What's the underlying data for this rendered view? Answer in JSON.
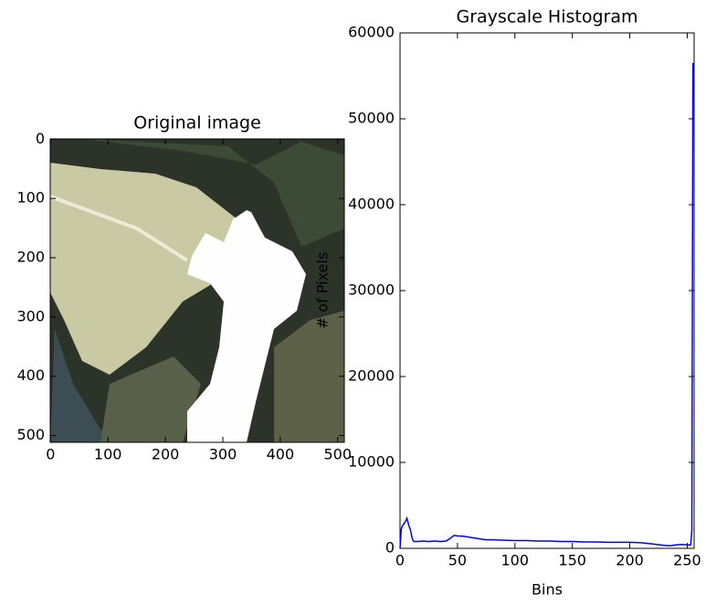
{
  "chart_data": [
    {
      "type": "image",
      "title": "Original image",
      "xlim": [
        -0.5,
        511.5
      ],
      "ylim": [
        511.5,
        -0.5
      ],
      "xticks": [
        0,
        100,
        200,
        300,
        400,
        500
      ],
      "yticks": [
        0,
        100,
        200,
        300,
        400,
        500
      ]
    },
    {
      "type": "line",
      "title": "Grayscale Histogram",
      "x_label": "Bins",
      "y_label": "# of Pixels",
      "x": [
        0,
        1,
        2,
        3,
        4,
        5,
        6,
        7,
        8,
        9,
        10,
        11,
        12,
        15,
        20,
        25,
        30,
        35,
        40,
        43,
        45,
        47,
        50,
        55,
        60,
        65,
        70,
        75,
        80,
        90,
        100,
        110,
        120,
        130,
        140,
        150,
        160,
        170,
        180,
        190,
        200,
        210,
        220,
        230,
        235,
        240,
        245,
        250,
        253,
        254,
        255
      ],
      "values": [
        0,
        2200,
        2600,
        2800,
        3000,
        3200,
        3500,
        3000,
        2500,
        2200,
        1500,
        1000,
        800,
        800,
        850,
        800,
        850,
        800,
        850,
        1100,
        1300,
        1500,
        1450,
        1400,
        1300,
        1200,
        1100,
        1000,
        1000,
        950,
        900,
        900,
        850,
        850,
        800,
        800,
        750,
        750,
        700,
        700,
        700,
        650,
        500,
        350,
        300,
        400,
        450,
        400,
        400,
        2000,
        56500
      ],
      "color": "#0000ff",
      "xlim": [
        0,
        256
      ],
      "ylim": [
        0,
        60000
      ],
      "xticks": [
        0,
        50,
        100,
        150,
        200,
        250
      ],
      "yticks": [
        0,
        10000,
        20000,
        30000,
        40000,
        50000,
        60000
      ]
    }
  ]
}
